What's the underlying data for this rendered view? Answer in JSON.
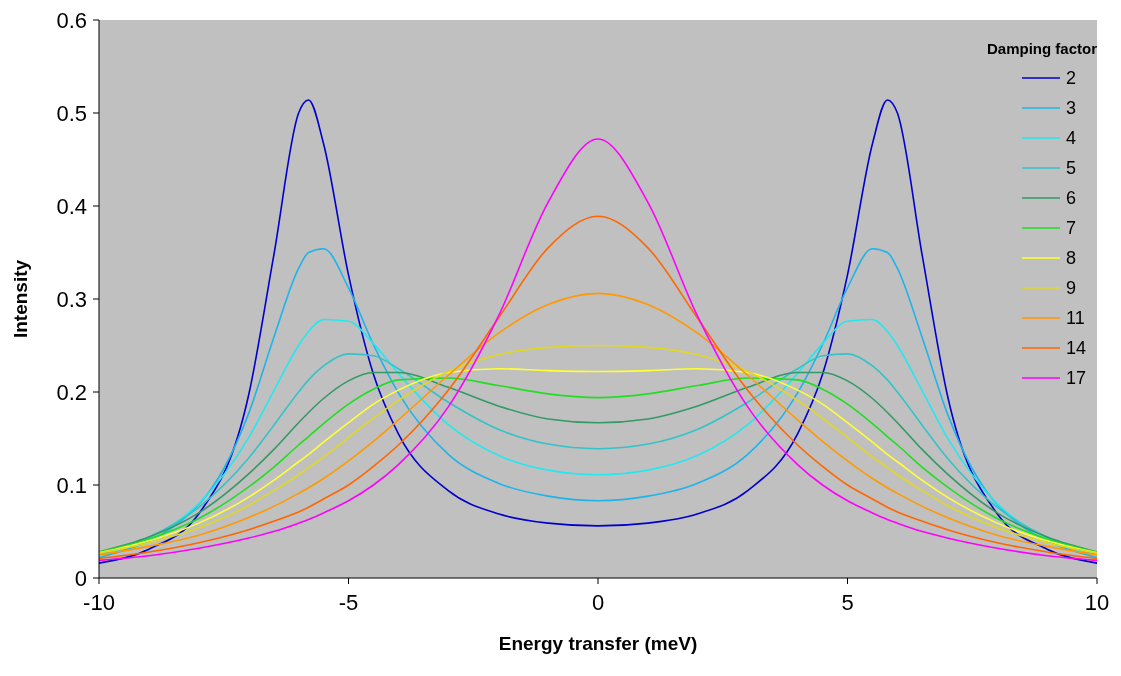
{
  "chart_data": {
    "type": "line",
    "xlabel": "Energy transfer (meV)",
    "ylabel": "Intensity",
    "legend_title": "Damping factor",
    "legend": "top right",
    "xlim": [
      -10,
      10
    ],
    "xticks": [
      -10,
      -5,
      0,
      5,
      10
    ],
    "ylim": [
      0,
      0.6
    ],
    "yticks": [
      0,
      0.1,
      0.2,
      0.3,
      0.4,
      0.5,
      0.6
    ],
    "x": [
      -10,
      -9,
      -8,
      -7,
      -6.5,
      -6,
      -5.8,
      -5.5,
      -5,
      -4.5,
      -4,
      -3,
      -2,
      -1,
      0,
      1,
      2,
      3,
      4,
      4.5,
      5,
      5.5,
      5.8,
      6,
      6.5,
      7,
      8,
      9,
      10
    ],
    "series": [
      {
        "name": "2",
        "color": "#0000cc",
        "values": [
          0.016,
          0.031,
          0.069,
          0.197,
          0.346,
          0.5,
          0.514,
          0.467,
          0.326,
          0.219,
          0.155,
          0.094,
          0.069,
          0.059,
          0.056,
          0.059,
          0.069,
          0.094,
          0.155,
          0.219,
          0.326,
          0.467,
          0.514,
          0.5,
          0.346,
          0.197,
          0.069,
          0.031,
          0.016
        ]
      },
      {
        "name": "3",
        "color": "#1eb4ea",
        "x": [
          -10,
          -8,
          -7,
          -6.5,
          -6,
          -5.8,
          -5.5,
          -5,
          -4.5,
          -4,
          -3,
          -2,
          -1,
          0,
          1,
          2,
          3,
          4,
          4.5,
          5,
          5.5,
          5.8,
          6,
          6.5,
          7,
          8,
          10
        ],
        "values": [
          0.022,
          0.079,
          0.177,
          0.258,
          0.333,
          0.35,
          0.354,
          0.312,
          0.251,
          0.199,
          0.133,
          0.102,
          0.088,
          0.083,
          0.088,
          0.102,
          0.133,
          0.199,
          0.251,
          0.312,
          0.354,
          0.35,
          0.333,
          0.258,
          0.177,
          0.079,
          0.022
        ]
      },
      {
        "name": "4",
        "color": "#22e8f0",
        "values": [
          0.025,
          0.043,
          0.08,
          0.151,
          0.201,
          0.25,
          0.265,
          0.278,
          0.276,
          0.252,
          0.22,
          0.165,
          0.132,
          0.116,
          0.111,
          0.116,
          0.132,
          0.165,
          0.22,
          0.252,
          0.276,
          0.278,
          0.265,
          0.25,
          0.201,
          0.151,
          0.08,
          0.043,
          0.025
        ]
      },
      {
        "name": "5",
        "color": "#33c3c8",
        "values": [
          0.027,
          0.044,
          0.076,
          0.129,
          0.164,
          0.2,
          0.213,
          0.228,
          0.241,
          0.239,
          0.225,
          0.189,
          0.16,
          0.144,
          0.139,
          0.144,
          0.16,
          0.189,
          0.225,
          0.239,
          0.241,
          0.228,
          0.213,
          0.2,
          0.164,
          0.129,
          0.076,
          0.044,
          0.027
        ]
      },
      {
        "name": "6",
        "color": "#339966",
        "values": [
          0.028,
          0.044,
          0.07,
          0.112,
          0.138,
          0.167,
          0.178,
          0.193,
          0.212,
          0.221,
          0.221,
          0.205,
          0.185,
          0.171,
          0.167,
          0.171,
          0.185,
          0.205,
          0.221,
          0.221,
          0.212,
          0.193,
          0.178,
          0.167,
          0.138,
          0.112,
          0.07,
          0.044,
          0.028
        ]
      },
      {
        "name": "7",
        "color": "#22dd22",
        "values": [
          0.028,
          0.042,
          0.064,
          0.098,
          0.119,
          0.143,
          0.152,
          0.166,
          0.187,
          0.203,
          0.213,
          0.215,
          0.207,
          0.198,
          0.194,
          0.198,
          0.207,
          0.215,
          0.213,
          0.203,
          0.187,
          0.166,
          0.152,
          0.143,
          0.119,
          0.098,
          0.064,
          0.042,
          0.028
        ]
      },
      {
        "name": "8",
        "color": "#ffff33",
        "values": [
          0.027,
          0.04,
          0.059,
          0.087,
          0.105,
          0.125,
          0.133,
          0.146,
          0.167,
          0.187,
          0.202,
          0.221,
          0.225,
          0.223,
          0.222,
          0.223,
          0.225,
          0.221,
          0.202,
          0.187,
          0.167,
          0.146,
          0.133,
          0.125,
          0.105,
          0.087,
          0.059,
          0.04,
          0.027
        ]
      },
      {
        "name": "9",
        "color": "#e0d820",
        "values": [
          0.027,
          0.038,
          0.054,
          0.078,
          0.094,
          0.111,
          0.119,
          0.13,
          0.151,
          0.172,
          0.191,
          0.222,
          0.24,
          0.248,
          0.25,
          0.248,
          0.24,
          0.222,
          0.191,
          0.172,
          0.151,
          0.13,
          0.119,
          0.111,
          0.094,
          0.078,
          0.054,
          0.038,
          0.027
        ]
      },
      {
        "name": "11",
        "color": "#ff9900",
        "values": [
          0.025,
          0.034,
          0.046,
          0.065,
          0.077,
          0.091,
          0.097,
          0.107,
          0.126,
          0.147,
          0.17,
          0.218,
          0.263,
          0.294,
          0.306,
          0.294,
          0.263,
          0.218,
          0.17,
          0.147,
          0.126,
          0.107,
          0.097,
          0.091,
          0.077,
          0.065,
          0.046,
          0.034,
          0.025
        ]
      },
      {
        "name": "14",
        "color": "#ff6600",
        "values": [
          0.021,
          0.028,
          0.038,
          0.052,
          0.061,
          0.071,
          0.076,
          0.085,
          0.1,
          0.12,
          0.143,
          0.202,
          0.279,
          0.355,
          0.389,
          0.355,
          0.279,
          0.202,
          0.143,
          0.12,
          0.1,
          0.085,
          0.076,
          0.071,
          0.061,
          0.052,
          0.038,
          0.028,
          0.021
        ]
      },
      {
        "name": "17",
        "color": "#ff00ff",
        "values": [
          0.019,
          0.024,
          0.032,
          0.043,
          0.05,
          0.059,
          0.063,
          0.07,
          0.083,
          0.1,
          0.122,
          0.184,
          0.281,
          0.404,
          0.472,
          0.404,
          0.281,
          0.184,
          0.122,
          0.1,
          0.083,
          0.07,
          0.063,
          0.059,
          0.05,
          0.043,
          0.032,
          0.024,
          0.019
        ]
      }
    ]
  }
}
